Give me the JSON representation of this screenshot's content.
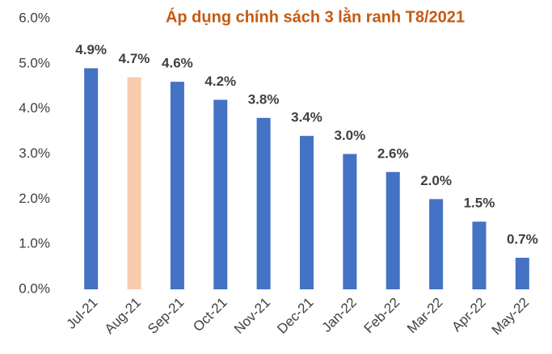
{
  "chart_data": {
    "type": "bar",
    "title": "Áp dụng chính sách 3 lằn ranh T8/2021",
    "categories": [
      "Jul-21",
      "Aug-21",
      "Sep-21",
      "Oct-21",
      "Nov-21",
      "Dec-21",
      "Jan-22",
      "Feb-22",
      "Mar-22",
      "Apr-22",
      "May-22"
    ],
    "values": [
      4.9,
      4.7,
      4.6,
      4.2,
      3.8,
      3.4,
      3.0,
      2.6,
      2.0,
      1.5,
      0.7
    ],
    "value_labels": [
      "4.9%",
      "4.7%",
      "4.6%",
      "4.2%",
      "3.8%",
      "3.4%",
      "3.0%",
      "2.6%",
      "2.0%",
      "1.5%",
      "0.7%"
    ],
    "colors": [
      "#4472c4",
      "#f8cbad",
      "#4472c4",
      "#4472c4",
      "#4472c4",
      "#4472c4",
      "#4472c4",
      "#4472c4",
      "#4472c4",
      "#4472c4",
      "#4472c4"
    ],
    "ylim": [
      0,
      6
    ],
    "yticks": [
      {
        "value": 0,
        "label": "0.0%"
      },
      {
        "value": 1,
        "label": "1.0%"
      },
      {
        "value": 2,
        "label": "2.0%"
      },
      {
        "value": 3,
        "label": "3.0%"
      },
      {
        "value": 4,
        "label": "4.0%"
      },
      {
        "value": 5,
        "label": "5.0%"
      },
      {
        "value": 6,
        "label": "6.0%"
      }
    ],
    "grid": false
  }
}
